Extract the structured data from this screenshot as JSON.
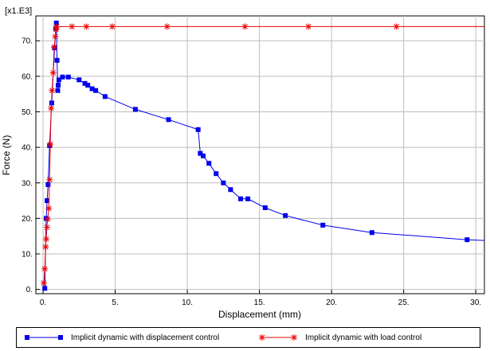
{
  "chart_data": {
    "type": "line",
    "title": "",
    "xlabel": "Displacement (mm)",
    "ylabel": "Force (N)",
    "y_multiplier": "[x1.E3]",
    "xlim": [
      -0.5,
      30.6
    ],
    "ylim": [
      -1.2,
      77
    ],
    "x_ticks": [
      0,
      5,
      10,
      15,
      20,
      25,
      30
    ],
    "x_tick_labels": [
      "0.",
      "5.",
      "10.",
      "15.",
      "20.",
      "25.",
      "30."
    ],
    "y_ticks": [
      0,
      10,
      20,
      30,
      40,
      50,
      60,
      70
    ],
    "y_tick_labels": [
      "0.",
      "10.",
      "20.",
      "30.",
      "40.",
      "50.",
      "60.",
      "70."
    ],
    "grid": true,
    "legend_position": "bottom",
    "series": [
      {
        "name": "Implicit dynamic  with displacement control",
        "color": "#0000ee",
        "marker": "square",
        "x": [
          0.12,
          0.22,
          0.28,
          0.35,
          0.45,
          0.6,
          0.8,
          0.88,
          0.92,
          0.97,
          1.02,
          1.05,
          1.1,
          1.35,
          1.75,
          2.5,
          2.9,
          3.1,
          3.4,
          3.65,
          4.3,
          6.4,
          8.7,
          10.75,
          10.9,
          11.1,
          11.5,
          12.0,
          12.5,
          13.0,
          13.7,
          14.2,
          15.4,
          16.8,
          19.4,
          22.8,
          29.4,
          31.0
        ],
        "y": [
          0.3,
          20.0,
          25.0,
          29.5,
          40.5,
          52.5,
          68.0,
          73.5,
          75.0,
          64.5,
          56.0,
          57.5,
          59.0,
          59.8,
          59.8,
          59.0,
          58.0,
          57.5,
          56.5,
          56.0,
          54.3,
          50.7,
          47.8,
          45.0,
          38.3,
          37.6,
          35.5,
          32.6,
          30.0,
          28.1,
          25.5,
          25.5,
          23.0,
          20.8,
          18.1,
          16.0,
          14.0,
          13.7
        ]
      },
      {
        "name": "Implicit dynamic with load control",
        "color": "#ee0000",
        "marker": "star",
        "x": [
          0.05,
          0.12,
          0.18,
          0.22,
          0.27,
          0.32,
          0.4,
          0.45,
          0.5,
          0.56,
          0.62,
          0.7,
          0.77,
          0.85,
          0.9,
          0.95,
          2.0,
          3.0,
          4.8,
          8.6,
          14.0,
          18.4,
          24.5,
          30.6
        ],
        "y": [
          1.8,
          5.8,
          12.0,
          14.2,
          17.5,
          19.8,
          22.8,
          30.9,
          40.9,
          51.0,
          56.0,
          61.0,
          68.2,
          71.2,
          73.2,
          74.0,
          74.0,
          74.0,
          74.0,
          74.0,
          74.0,
          74.0,
          74.0,
          74.0
        ],
        "marker_count": 23
      }
    ]
  }
}
